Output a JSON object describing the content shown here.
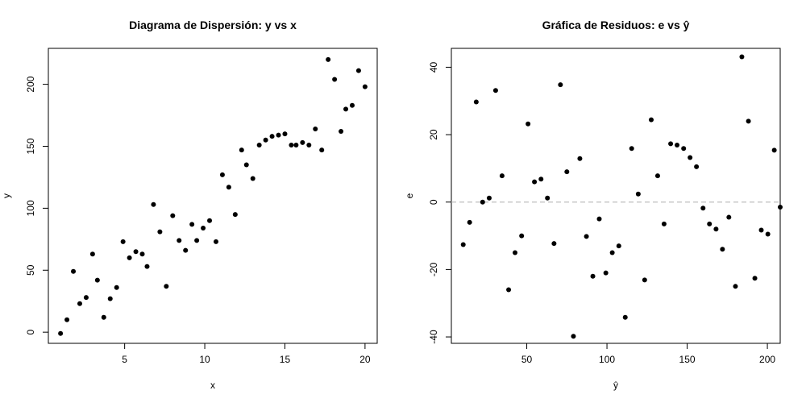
{
  "chart_data": [
    {
      "type": "scatter",
      "title": "Diagrama de Dispersión: y vs x",
      "xlabel": "x",
      "ylabel": "y",
      "xlim": [
        0.24,
        20.76
      ],
      "ylim": [
        -9,
        229
      ],
      "xticks": [
        5,
        10,
        15,
        20
      ],
      "yticks": [
        0,
        50,
        100,
        150,
        200
      ],
      "grid": false,
      "point_color": "#000000",
      "points": [
        [
          1.0,
          -1
        ],
        [
          1.4,
          10
        ],
        [
          1.8,
          49
        ],
        [
          2.2,
          23
        ],
        [
          2.6,
          28
        ],
        [
          3.0,
          63
        ],
        [
          3.3,
          42
        ],
        [
          3.7,
          12
        ],
        [
          4.1,
          27
        ],
        [
          4.5,
          36
        ],
        [
          4.9,
          73
        ],
        [
          5.3,
          60
        ],
        [
          5.7,
          65
        ],
        [
          6.1,
          63
        ],
        [
          6.4,
          53
        ],
        [
          6.8,
          103
        ],
        [
          7.2,
          81
        ],
        [
          7.6,
          37
        ],
        [
          8.0,
          94
        ],
        [
          8.4,
          74
        ],
        [
          8.8,
          66
        ],
        [
          9.2,
          87
        ],
        [
          9.5,
          74
        ],
        [
          9.9,
          84
        ],
        [
          10.3,
          90
        ],
        [
          10.7,
          73
        ],
        [
          11.1,
          127
        ],
        [
          11.5,
          117
        ],
        [
          11.9,
          95
        ],
        [
          12.3,
          147
        ],
        [
          12.6,
          135
        ],
        [
          13.0,
          124
        ],
        [
          13.4,
          151
        ],
        [
          13.8,
          155
        ],
        [
          14.2,
          158
        ],
        [
          14.6,
          159
        ],
        [
          15.0,
          160
        ],
        [
          15.4,
          151
        ],
        [
          15.7,
          151
        ],
        [
          16.1,
          153
        ],
        [
          16.5,
          151
        ],
        [
          16.9,
          164
        ],
        [
          17.3,
          147
        ],
        [
          17.7,
          220
        ],
        [
          18.1,
          204
        ],
        [
          18.5,
          162
        ],
        [
          18.8,
          180
        ],
        [
          19.2,
          183
        ],
        [
          19.6,
          211
        ],
        [
          20.0,
          198
        ]
      ]
    },
    {
      "type": "scatter",
      "title": "Gráfica de Residuos: e vs ŷ",
      "xlabel": "ŷ",
      "ylabel": "e",
      "xlim": [
        3,
        208
      ],
      "ylim": [
        -41.9,
        45.6
      ],
      "xticks": [
        50,
        100,
        150,
        200
      ],
      "yticks": [
        -40,
        -20,
        0,
        20,
        40
      ],
      "reference_line": {
        "y": 0,
        "style": "dashed",
        "color": "#bfbfbf"
      },
      "grid": false,
      "point_color": "#000000",
      "points": [
        [
          10.4,
          -12.6
        ],
        [
          14.4,
          -6.0
        ],
        [
          18.5,
          29.7
        ],
        [
          22.5,
          0.0
        ],
        [
          26.6,
          1.2
        ],
        [
          30.6,
          33.1
        ],
        [
          34.6,
          7.8
        ],
        [
          38.7,
          -26.0
        ],
        [
          42.7,
          -15.0
        ],
        [
          46.8,
          -10.0
        ],
        [
          50.8,
          23.2
        ],
        [
          54.8,
          6.0
        ],
        [
          58.9,
          6.8
        ],
        [
          62.9,
          1.2
        ],
        [
          67.0,
          -12.3
        ],
        [
          71.0,
          34.8
        ],
        [
          75.0,
          9.0
        ],
        [
          79.1,
          -39.8
        ],
        [
          83.1,
          12.9
        ],
        [
          87.2,
          -10.2
        ],
        [
          91.2,
          -22.0
        ],
        [
          95.2,
          -5.0
        ],
        [
          99.3,
          -21.0
        ],
        [
          103.3,
          -15.0
        ],
        [
          107.4,
          -13.0
        ],
        [
          111.4,
          -34.2
        ],
        [
          115.4,
          15.9
        ],
        [
          119.5,
          2.4
        ],
        [
          123.5,
          -23.1
        ],
        [
          127.6,
          24.4
        ],
        [
          131.6,
          7.8
        ],
        [
          135.6,
          -6.5
        ],
        [
          139.7,
          17.3
        ],
        [
          143.7,
          16.9
        ],
        [
          147.8,
          15.9
        ],
        [
          151.8,
          13.2
        ],
        [
          155.8,
          10.5
        ],
        [
          159.9,
          -1.8
        ],
        [
          163.9,
          -6.5
        ],
        [
          168.0,
          -8.0
        ],
        [
          172.0,
          -14.0
        ],
        [
          176.0,
          -4.5
        ],
        [
          180.1,
          -25.0
        ],
        [
          184.1,
          43.1
        ],
        [
          188.2,
          24.0
        ],
        [
          192.2,
          -22.6
        ],
        [
          196.2,
          -8.3
        ],
        [
          200.3,
          -9.5
        ],
        [
          204.3,
          15.4
        ],
        [
          208.0,
          -1.5
        ]
      ]
    }
  ]
}
